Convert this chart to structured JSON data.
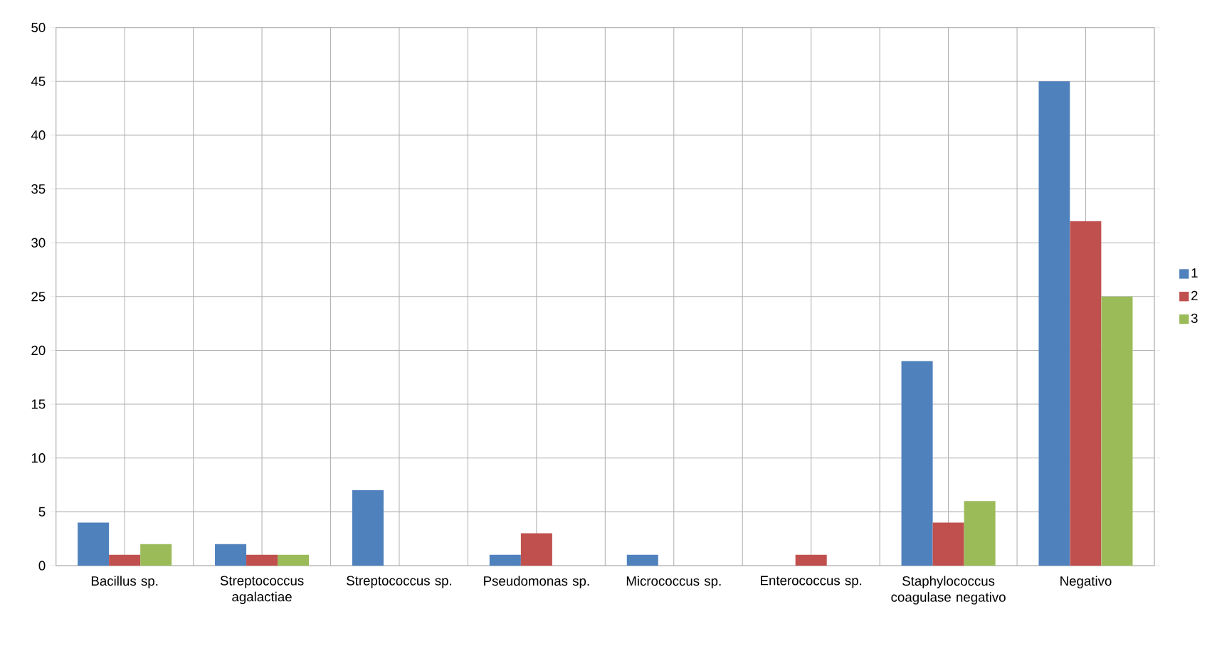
{
  "chart_data": {
    "type": "bar",
    "categories": [
      "Bacillus sp.",
      "Streptococcus agalactiae",
      "Streptococcus sp.",
      "Pseudomonas sp.",
      "Micrococcus sp.",
      "Enterococcus sp.",
      "Staphylococcus coagulase negativo",
      "Negativo"
    ],
    "series": [
      {
        "name": "1",
        "color": "#4f81bd",
        "values": [
          4,
          2,
          7,
          1,
          1,
          0,
          19,
          45
        ]
      },
      {
        "name": "2",
        "color": "#c0504d",
        "values": [
          1,
          1,
          0,
          3,
          0,
          1,
          4,
          32
        ]
      },
      {
        "name": "3",
        "color": "#9bbb59",
        "values": [
          2,
          1,
          0,
          0,
          0,
          0,
          6,
          25
        ]
      }
    ],
    "ylim": [
      0,
      50
    ],
    "yticks": [
      0,
      5,
      10,
      15,
      20,
      25,
      30,
      35,
      40,
      45,
      50
    ],
    "grid": true,
    "legend": "right"
  }
}
